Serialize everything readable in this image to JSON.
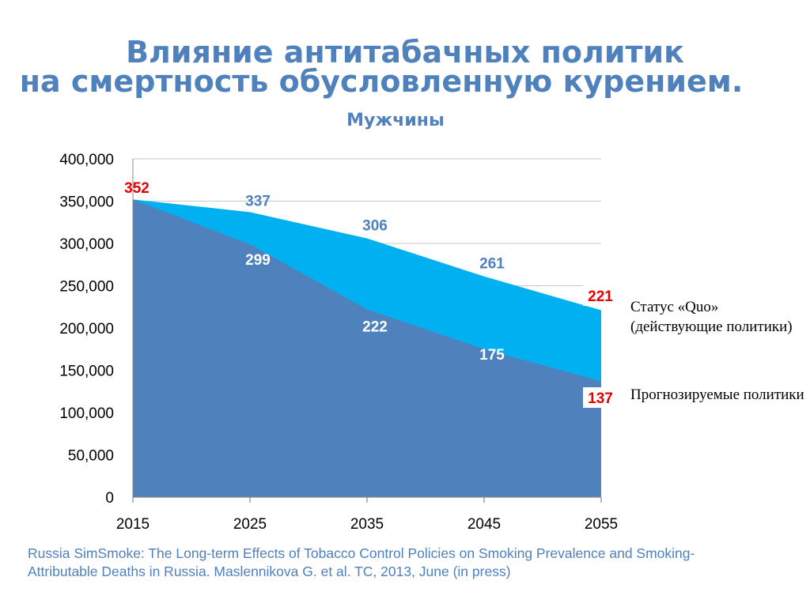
{
  "title_line1": "Влияние антитабачных политик",
  "title_line2": "на смертность обусловленную курением.",
  "subtitle": "Мужчины",
  "legend": {
    "status_quo": "Статус «Quo» (действующие политики)",
    "projected": "Прогнозируемые политики"
  },
  "source_line1": "Russia SimSmoke:  The Long-term Effects of Tobacco Control Policies on Smoking Prevalence and Smoking-",
  "source_line2": "Attributable Deaths in Russia.  Maslennikova  G. et al. TC, 2013, June (in press)",
  "chart_data": {
    "type": "area",
    "title": "Мужчины",
    "x": [
      2015,
      2025,
      2035,
      2045,
      2055
    ],
    "x_tick_labels": [
      "2015",
      "2025",
      "2035",
      "2045",
      "2055"
    ],
    "y_tick_labels": [
      "0",
      "50,000",
      "100,000",
      "150,000",
      "200,000",
      "250,000",
      "300,000",
      "350,000",
      "400,000"
    ],
    "ylim": [
      0,
      400000
    ],
    "grid": "horizontal",
    "series": [
      {
        "name": "Статус «Quo» (действующие политики)",
        "color": "#00b0f0",
        "values": [
          352000,
          337000,
          306000,
          261000,
          221000
        ],
        "labels": [
          "352",
          "337",
          "306",
          "261",
          "221"
        ],
        "label_colors": [
          "#e60000",
          "#4f81bd",
          "#4f81bd",
          "#4f81bd",
          "#e60000"
        ]
      },
      {
        "name": "Прогнозируемые политики",
        "color": "#4f81bd",
        "values": [
          352000,
          299000,
          222000,
          175000,
          137000
        ],
        "labels": [
          "352",
          "299",
          "222",
          "175",
          "137"
        ],
        "label_colors": [
          "#e60000",
          "#ffffff",
          "#ffffff",
          "#ffffff",
          "#e60000"
        ]
      }
    ]
  }
}
